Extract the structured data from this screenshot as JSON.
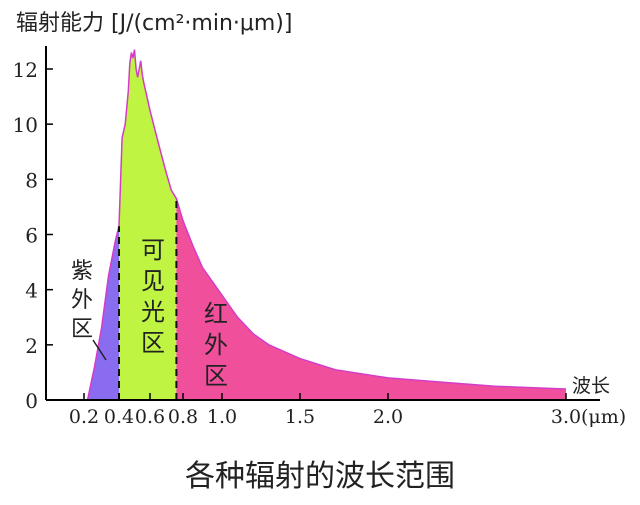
{
  "chart_data": {
    "type": "area",
    "title": "各种辐射的波长范围",
    "ylabel": "辐射能力 [J/(cm²·min·μm)]",
    "xlabel": "波长",
    "x_unit": "(μm)",
    "xlim": [
      0,
      3.0
    ],
    "ylim": [
      0,
      12
    ],
    "x_ticks": [
      0.2,
      0.4,
      0.6,
      0.8,
      1.0,
      1.5,
      2.0,
      3.0
    ],
    "x_tick_labels": [
      "0.2",
      "0.4",
      "0.6",
      "0.8",
      "1.0",
      "1.5",
      "2.0",
      "3.0"
    ],
    "y_ticks": [
      0,
      2,
      4,
      6,
      8,
      10,
      12
    ],
    "y_tick_labels": [
      "0",
      "2",
      "4",
      "6",
      "8",
      "10",
      "12"
    ],
    "grid": false,
    "boundaries": [
      0.4,
      0.76
    ],
    "regions": [
      {
        "label": "紫外区",
        "x_range": [
          0.2,
          0.4
        ],
        "color": "#8a6cf0"
      },
      {
        "label": "可见光区",
        "x_range": [
          0.4,
          0.76
        ],
        "color": "#bff542"
      },
      {
        "label": "红外区",
        "x_range": [
          0.76,
          3.0
        ],
        "color": "#f0509b"
      }
    ],
    "curve": {
      "color": "#d43cc8",
      "x": [
        0.22,
        0.26,
        0.3,
        0.34,
        0.38,
        0.4,
        0.42,
        0.44,
        0.46,
        0.47,
        0.48,
        0.49,
        0.5,
        0.51,
        0.52,
        0.53,
        0.54,
        0.55,
        0.56,
        0.58,
        0.6,
        0.63,
        0.66,
        0.7,
        0.73,
        0.76,
        0.8,
        0.85,
        0.9,
        1.0,
        1.1,
        1.2,
        1.3,
        1.5,
        1.7,
        2.0,
        2.3,
        2.6,
        3.0
      ],
      "y": [
        0.0,
        1.2,
        2.6,
        4.5,
        5.8,
        6.3,
        9.5,
        10.0,
        11.2,
        12.2,
        12.6,
        12.4,
        12.7,
        12.0,
        11.7,
        12.0,
        12.3,
        11.8,
        11.5,
        11.0,
        10.5,
        9.8,
        9.1,
        8.2,
        7.6,
        7.3,
        6.5,
        5.6,
        4.8,
        3.8,
        3.0,
        2.4,
        2.0,
        1.5,
        1.1,
        0.8,
        0.65,
        0.5,
        0.4
      ]
    }
  }
}
